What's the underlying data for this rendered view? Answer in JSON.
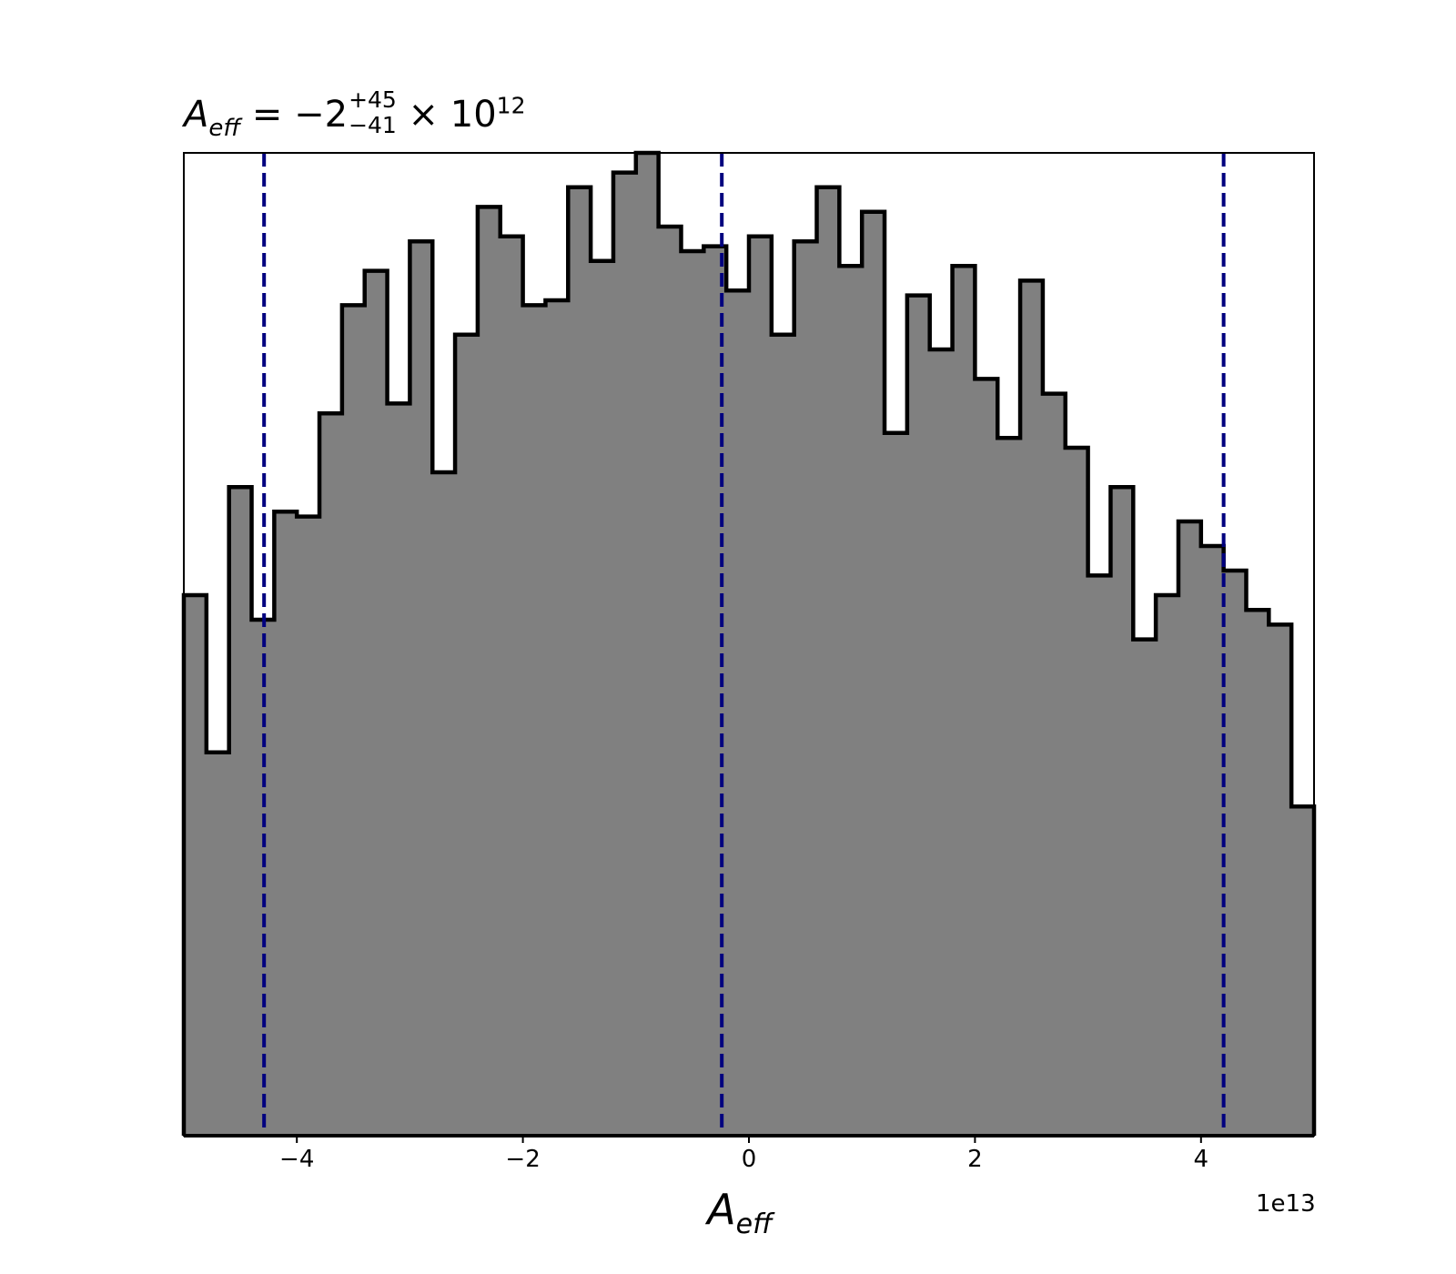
{
  "chart_data": {
    "type": "bar",
    "title": {
      "symbol": "A",
      "subscript": "eff",
      "equals": " = −2",
      "upper": "+45",
      "lower": "−41",
      "times": " × 10",
      "exponent": "12"
    },
    "xlabel": {
      "symbol": "A",
      "subscript": "eff"
    },
    "x_offset_text": "1e13",
    "xlim": [
      -5.0,
      5.0
    ],
    "ylim": [
      0,
      100
    ],
    "bin_edges": [
      -5.0,
      -4.8,
      -4.6,
      -4.4,
      -4.2,
      -4.0,
      -3.8,
      -3.6,
      -3.4,
      -3.2,
      -3.0,
      -2.8,
      -2.6,
      -2.4,
      -2.2,
      -2.0,
      -1.8,
      -1.6,
      -1.4,
      -1.2,
      -1.0,
      -0.8,
      -0.6,
      -0.4,
      -0.2,
      0.0,
      0.2,
      0.4,
      0.6,
      0.8,
      1.0,
      1.2,
      1.4,
      1.6,
      1.8,
      2.0,
      2.2,
      2.4,
      2.6,
      2.8,
      3.0,
      3.2,
      3.4,
      3.6,
      3.8,
      4.0,
      4.2,
      4.4,
      4.6,
      4.8,
      5.0
    ],
    "counts": [
      55.0,
      39.0,
      66.0,
      52.5,
      63.5,
      63.0,
      73.5,
      84.5,
      88.0,
      74.5,
      91.0,
      67.5,
      81.5,
      94.5,
      91.5,
      84.5,
      85.0,
      96.5,
      89.0,
      98.0,
      100.0,
      92.5,
      90.0,
      90.5,
      86.0,
      91.5,
      81.5,
      91.0,
      96.5,
      88.5,
      94.0,
      71.5,
      85.5,
      80.0,
      88.5,
      77.0,
      71.0,
      87.0,
      75.5,
      70.0,
      57.0,
      66.0,
      50.5,
      55.0,
      62.5,
      60.0,
      57.5,
      53.5,
      52.0,
      33.5
    ],
    "vlines": [
      -4.29,
      -0.24,
      4.2
    ],
    "xticks": [
      -4,
      -2,
      0,
      2,
      4
    ],
    "xtick_labels": [
      "−4",
      "−2",
      "0",
      "2",
      "4"
    ],
    "yticks_visible": false,
    "grid": false,
    "colors": {
      "fill": "#808080",
      "edge": "#000000",
      "vline": "#00007f"
    }
  }
}
